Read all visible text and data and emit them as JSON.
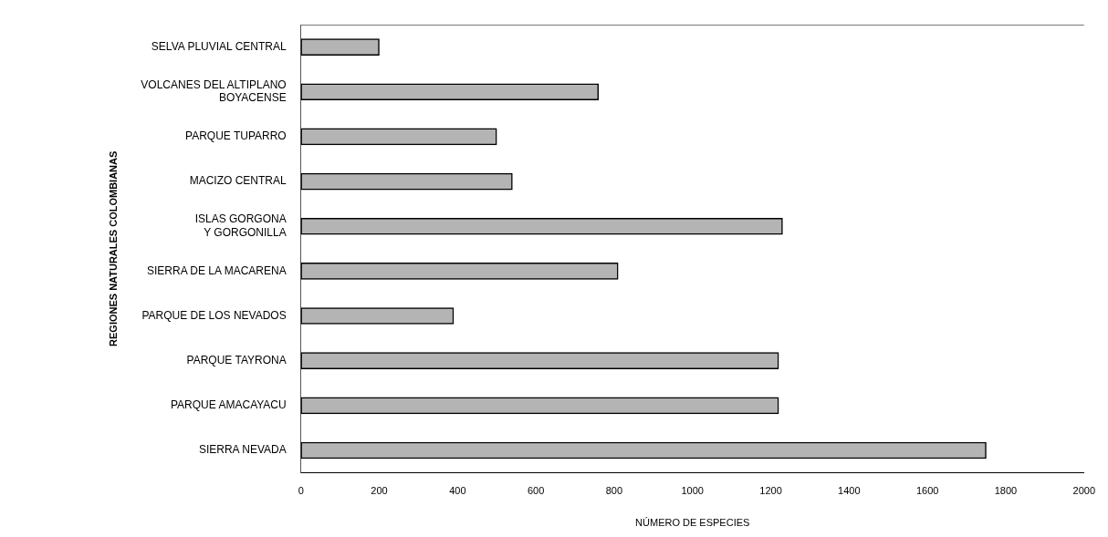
{
  "chart_data": {
    "type": "bar",
    "orientation": "horizontal",
    "xlabel": "NÚMERO DE ESPECIES",
    "ylabel": "REGIONES NATURALES COLOMBIANAS",
    "categories": [
      "SELVA PLUVIAL CENTRAL",
      "VOLCANES DEL ALTIPLANO\nBOYACENSE",
      "PARQUE TUPARRO",
      "MACIZO CENTRAL",
      "ISLAS GORGONA\nY GORGONILLA",
      "SIERRA DE LA MACARENA",
      "PARQUE DE LOS NEVADOS",
      "PARQUE TAYRONA",
      "PARQUE AMACAYACU",
      "SIERRA NEVADA"
    ],
    "values": [
      200,
      760,
      500,
      540,
      1230,
      810,
      390,
      1220,
      1220,
      1750
    ],
    "color": "#b4b4b4",
    "xlim": [
      0,
      2000
    ],
    "xticks": [
      0,
      200,
      400,
      600,
      800,
      1000,
      1200,
      1400,
      1600,
      1800,
      2000
    ],
    "grid": false,
    "legend": false
  }
}
